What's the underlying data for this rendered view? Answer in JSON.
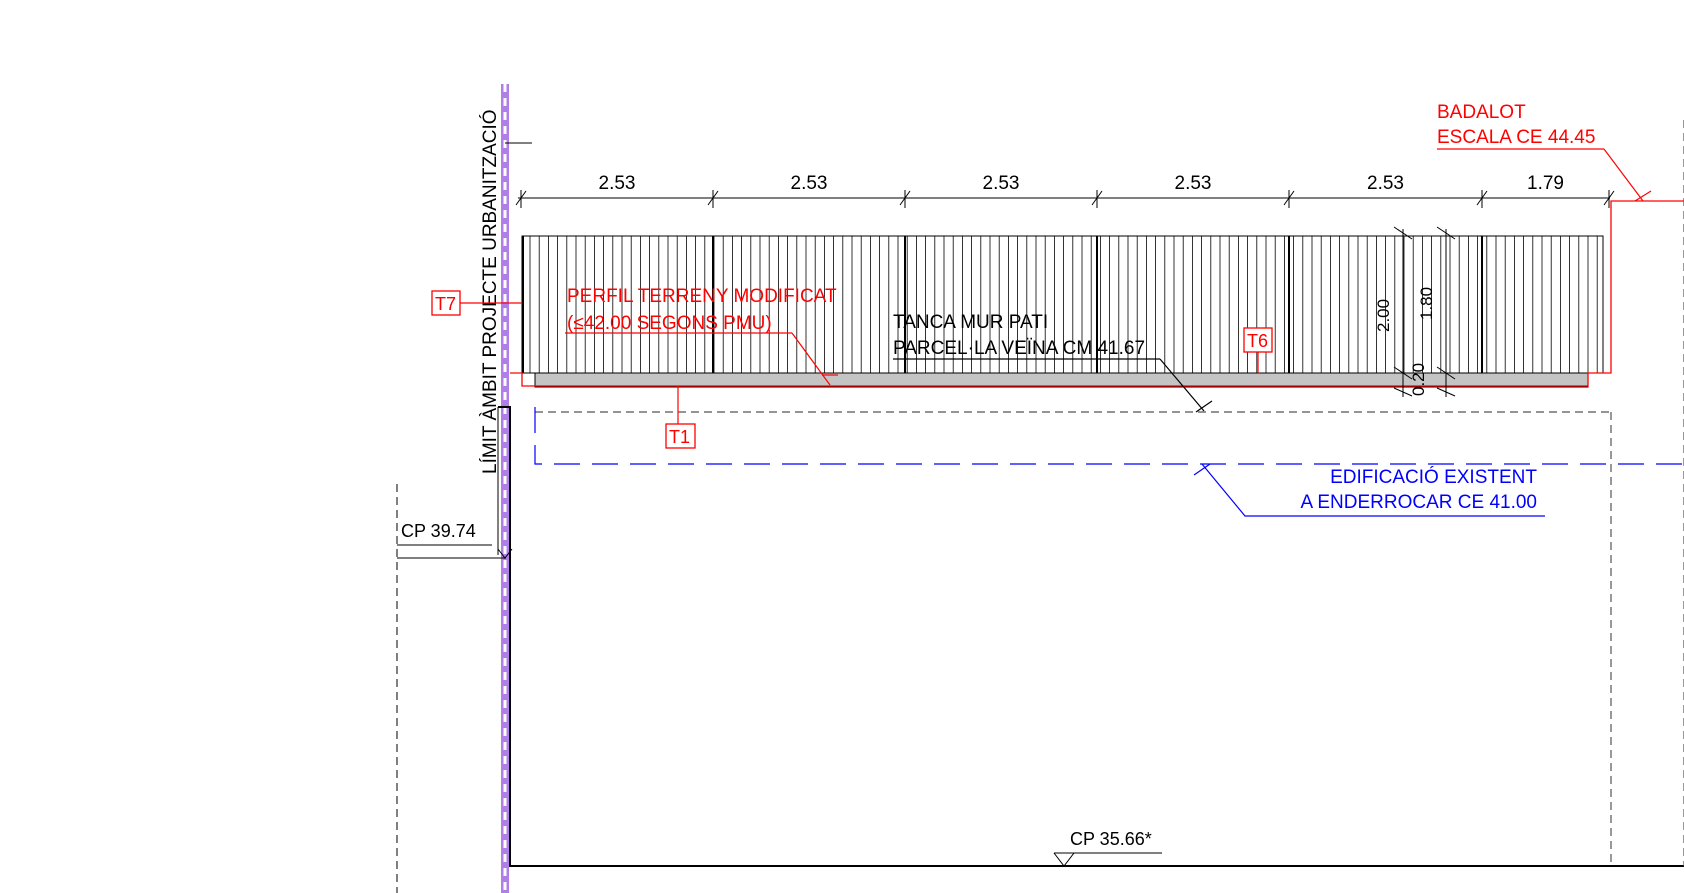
{
  "colors": {
    "annotation_red": "#ff0000",
    "annotation_blue": "#0000ff",
    "boundary_purple": "#b07ee8",
    "line_black": "#000000",
    "foundation_grey": "#c4c4c4"
  },
  "boundary": {
    "label": "LÍMIT ÀMBIT PROJECTE URBANITZACIÓ"
  },
  "dimensions": {
    "spans": [
      "2.53",
      "2.53",
      "2.53",
      "2.53",
      "2.53",
      "1.79"
    ],
    "fence_height": "2.00",
    "wall_height": "1.80",
    "base_height": "0.20"
  },
  "annotations": {
    "terrain": [
      "PERFIL TERRENY MODIFICAT",
      "(≤42.00 SEGONS PMU)"
    ],
    "fence": [
      "TANCA MUR PATI",
      "PARCEL·LA VEÏNA CM 41.67"
    ],
    "stair": [
      "BADALOT",
      "ESCALA CE 44.45"
    ],
    "existing": [
      "EDIFICACIÓ EXISTENT",
      "A ENDERROCAR CE 41.00"
    ]
  },
  "levels": {
    "cp_upper": "CP 39.74",
    "cp_lower": "CP 35.66*"
  },
  "tags": {
    "t1": "T1",
    "t6": "T6",
    "t7": "T7"
  }
}
